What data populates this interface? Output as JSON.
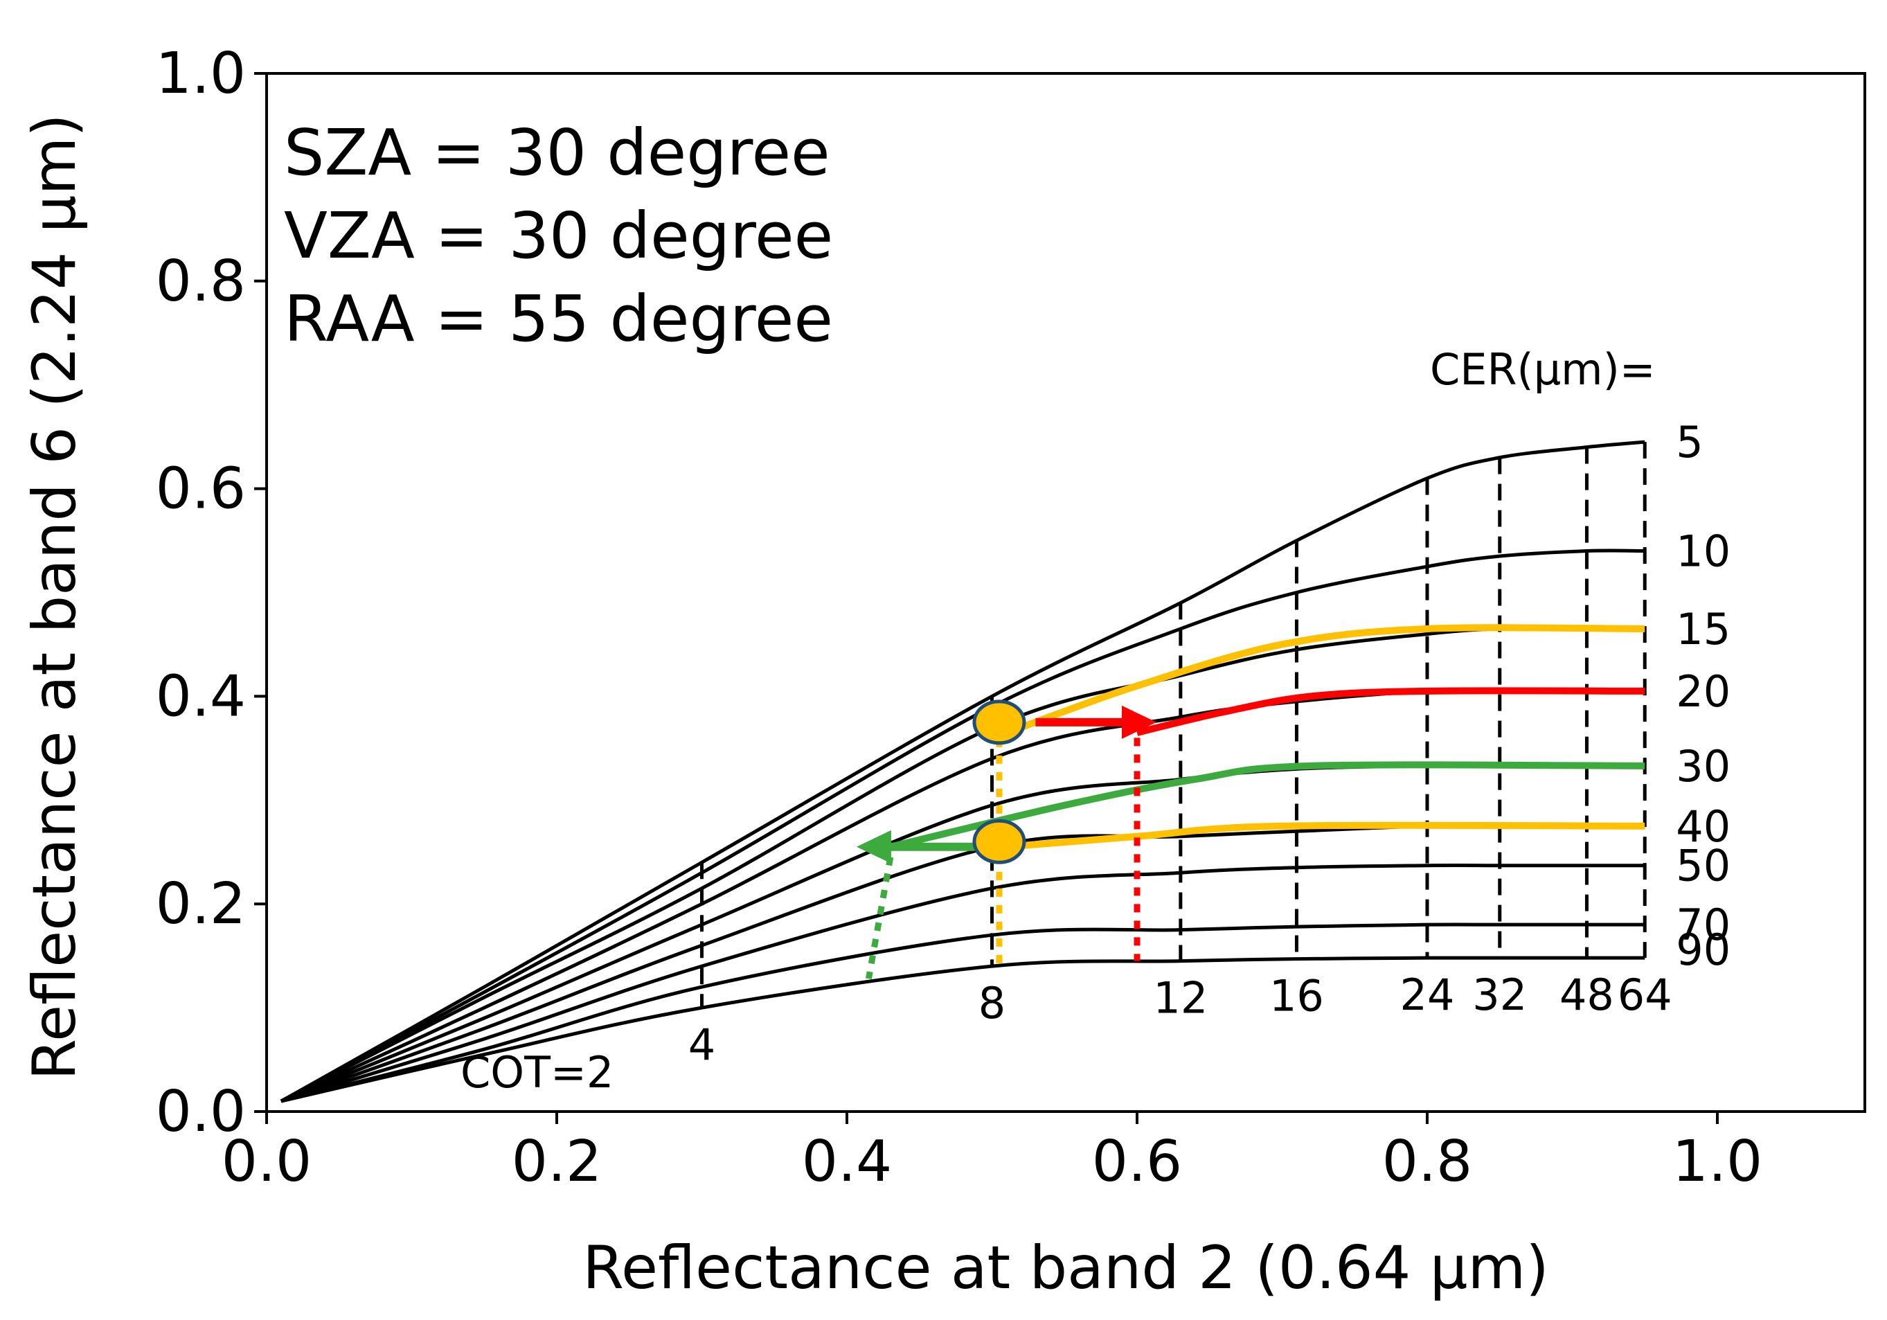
{
  "chart_data": {
    "type": "line",
    "title": "",
    "xlabel": "Reflectance at band 2 (0.64 μm)",
    "ylabel": "Reflectance at band 6 (2.24 μm)",
    "xlim": [
      0.0,
      1.12
    ],
    "ylim": [
      0.0,
      1.0
    ],
    "xticks": [
      "0.0",
      "0.2",
      "0.4",
      "0.6",
      "0.8",
      "1.0"
    ],
    "yticks": [
      "0.0",
      "0.2",
      "0.4",
      "0.6",
      "0.8",
      "1.0"
    ],
    "annotations": [
      "SZA = 30 degree",
      "VZA = 30 degree",
      "RAA = 55 degree"
    ],
    "cer_header": "CER(μm)=",
    "cot_prefix": "COT=2",
    "cot_values": [
      2,
      4,
      8,
      12,
      16,
      24,
      32,
      48,
      64
    ],
    "cot_labels": [
      "4",
      "8",
      "12",
      "16",
      "24",
      "32",
      "48",
      "64"
    ],
    "cer_values": [
      5,
      10,
      15,
      20,
      30,
      40,
      50,
      70,
      90
    ],
    "cer_labels": [
      "5",
      "10",
      "15",
      "20",
      "30",
      "40",
      "50",
      "70",
      "90"
    ],
    "cot_x": [
      0.15,
      0.3,
      0.5,
      0.63,
      0.71,
      0.8,
      0.85,
      0.91,
      0.95
    ],
    "series": [
      {
        "name": "CER 5",
        "y": [
          0.12,
          0.24,
          0.4,
          0.49,
          0.55,
          0.61,
          0.63,
          0.64,
          0.645
        ]
      },
      {
        "name": "CER 10",
        "y": [
          0.115,
          0.23,
          0.39,
          0.465,
          0.5,
          0.525,
          0.535,
          0.54,
          0.54
        ]
      },
      {
        "name": "CER 15",
        "y": [
          0.11,
          0.215,
          0.37,
          0.42,
          0.445,
          0.46,
          0.465,
          0.465,
          0.465
        ]
      },
      {
        "name": "CER 20",
        "y": [
          0.1,
          0.2,
          0.34,
          0.38,
          0.395,
          0.405,
          0.405,
          0.405,
          0.405
        ]
      },
      {
        "name": "CER 30",
        "y": [
          0.09,
          0.18,
          0.295,
          0.32,
          0.33,
          0.333,
          0.333,
          0.333,
          0.333
        ]
      },
      {
        "name": "CER 40",
        "y": [
          0.08,
          0.16,
          0.255,
          0.265,
          0.27,
          0.275,
          0.275,
          0.275,
          0.275
        ]
      },
      {
        "name": "CER 50",
        "y": [
          0.07,
          0.14,
          0.215,
          0.23,
          0.235,
          0.237,
          0.237,
          0.237,
          0.237
        ]
      },
      {
        "name": "CER 70",
        "y": [
          0.06,
          0.12,
          0.17,
          0.175,
          0.178,
          0.18,
          0.18,
          0.18,
          0.18
        ]
      },
      {
        "name": "CER 90",
        "y": [
          0.055,
          0.1,
          0.14,
          0.145,
          0.147,
          0.148,
          0.148,
          0.148,
          0.148
        ]
      }
    ],
    "highlights": {
      "colors": {
        "orange": "#FFC000",
        "red": "#FF0000",
        "green": "#3DAA3D",
        "black": "#000000"
      },
      "orange_upper": [
        [
          0.52,
          0.37
        ],
        [
          0.6,
          0.41
        ],
        [
          0.7,
          0.45
        ],
        [
          0.8,
          0.465
        ],
        [
          0.95,
          0.465
        ]
      ],
      "orange_lower": [
        [
          0.51,
          0.255
        ],
        [
          0.6,
          0.265
        ],
        [
          0.7,
          0.275
        ],
        [
          0.95,
          0.275
        ]
      ],
      "red_curve": [
        [
          0.6,
          0.365
        ],
        [
          0.66,
          0.385
        ],
        [
          0.72,
          0.4
        ],
        [
          0.8,
          0.405
        ],
        [
          0.95,
          0.405
        ]
      ],
      "green_curve": [
        [
          0.43,
          0.255
        ],
        [
          0.55,
          0.295
        ],
        [
          0.64,
          0.32
        ],
        [
          0.72,
          0.333
        ],
        [
          0.95,
          0.333
        ]
      ],
      "red_arrow": [
        [
          0.53,
          0.375
        ],
        [
          0.6,
          0.375
        ]
      ],
      "green_arrow": [
        [
          0.5,
          0.255
        ],
        [
          0.42,
          0.255
        ]
      ],
      "red_dotted": [
        [
          0.6,
          0.36
        ],
        [
          0.6,
          0.145
        ]
      ],
      "green_dotted": [
        [
          0.43,
          0.245
        ],
        [
          0.415,
          0.128
        ]
      ],
      "orange_dotted": [
        [
          0.505,
          0.375
        ],
        [
          0.505,
          0.137
        ]
      ],
      "markers": [
        [
          0.505,
          0.375
        ],
        [
          0.505,
          0.26
        ]
      ]
    }
  }
}
